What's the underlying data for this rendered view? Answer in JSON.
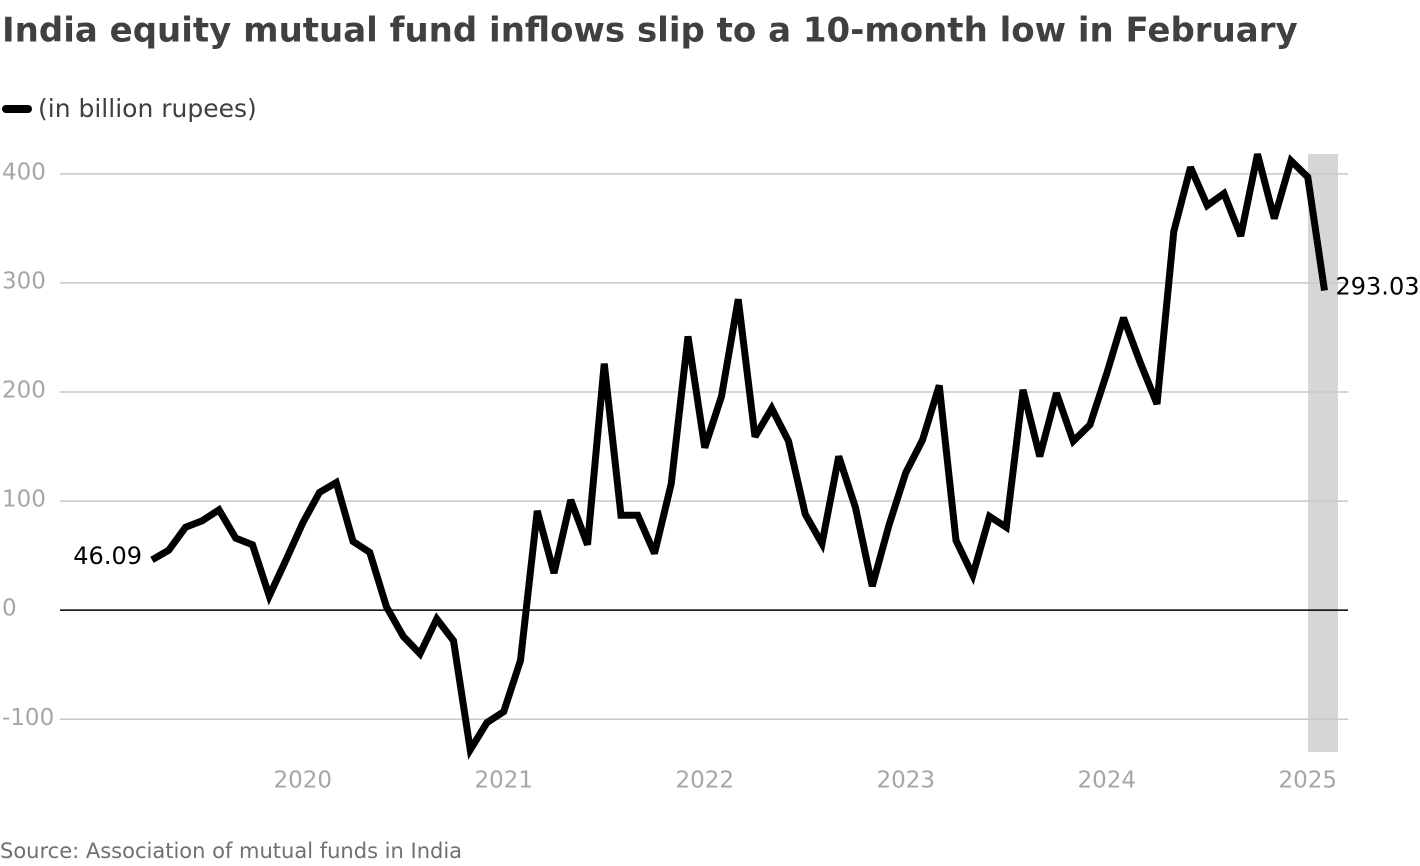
{
  "chart_data": {
    "type": "line",
    "title": "India equity mutual fund inflows slip to a 10-month low in February",
    "source": "Source: Association of mutual funds in India",
    "categories": [
      null,
      null,
      null,
      null,
      null,
      null,
      null,
      null,
      null,
      "2020",
      null,
      null,
      null,
      null,
      null,
      null,
      null,
      null,
      null,
      null,
      null,
      "2021",
      null,
      null,
      null,
      null,
      null,
      null,
      null,
      null,
      null,
      null,
      null,
      "2022",
      null,
      null,
      null,
      null,
      null,
      null,
      null,
      null,
      null,
      null,
      null,
      "2023",
      null,
      null,
      null,
      null,
      null,
      null,
      null,
      null,
      null,
      null,
      null,
      "2024",
      null,
      null,
      null,
      null,
      null,
      null,
      null,
      null,
      null,
      null,
      null,
      "2025",
      null
    ],
    "series": [
      {
        "name": "(in billion rupees)",
        "color": "#000000",
        "values": [
          46.09,
          55,
          76,
          82,
          92,
          66,
          60,
          13,
          46,
          80,
          108,
          117,
          63,
          53,
          3,
          -24,
          -40,
          -8,
          -28,
          -128,
          -103,
          -93,
          -46,
          91,
          34,
          101,
          60,
          226,
          87,
          87,
          52,
          116,
          251,
          149,
          196,
          285,
          159,
          185,
          155,
          88,
          61,
          141,
          94,
          22,
          78,
          126,
          156,
          206,
          64,
          32,
          86,
          76,
          202,
          141,
          199,
          155,
          170,
          217,
          268,
          227,
          189,
          347,
          406,
          371,
          382,
          343,
          418,
          359,
          412,
          397,
          293.03
        ]
      }
    ],
    "ylim": [
      -130,
      420
    ],
    "yticks": [
      -100,
      0,
      100,
      200,
      300,
      400
    ],
    "grid": true
  }
}
